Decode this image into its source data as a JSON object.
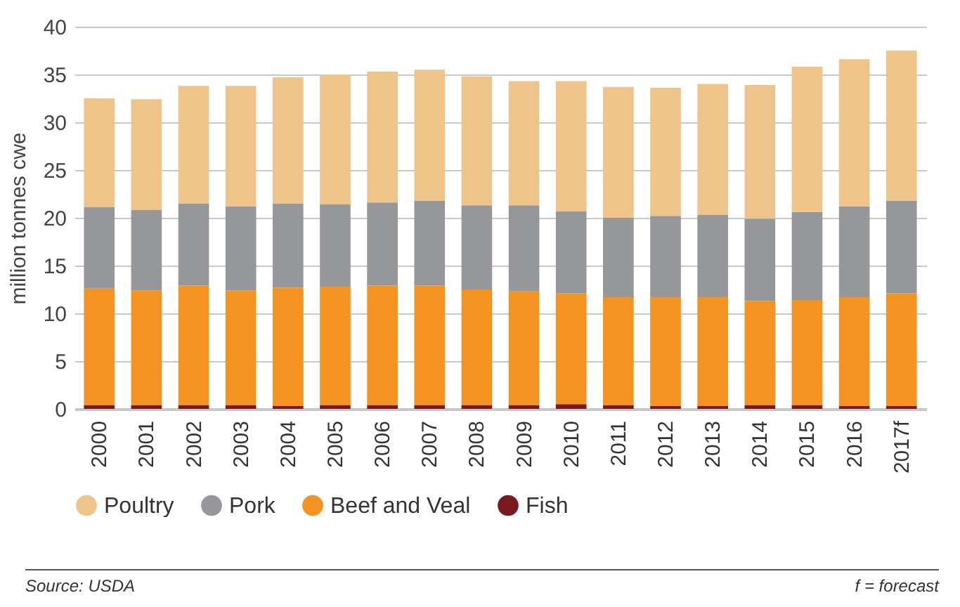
{
  "chart_data": {
    "type": "bar",
    "stacked": true,
    "ylabel": "million tonnes cwe",
    "categories": [
      "2000",
      "2001",
      "2002",
      "2003",
      "2004",
      "2005",
      "2006",
      "2007",
      "2008",
      "2009",
      "2010",
      "2011",
      "2012",
      "2013",
      "2014",
      "2015",
      "2016",
      "2017f"
    ],
    "series": [
      {
        "name": "Fish",
        "color": "#7a1a1f",
        "values": [
          0.4,
          0.4,
          0.4,
          0.4,
          0.3,
          0.4,
          0.4,
          0.4,
          0.4,
          0.4,
          0.5,
          0.4,
          0.3,
          0.3,
          0.4,
          0.4,
          0.3,
          0.3
        ]
      },
      {
        "name": "Beef and Veal",
        "color": "#f39322",
        "values": [
          12.2,
          12.0,
          12.5,
          12.0,
          12.4,
          12.4,
          12.5,
          12.5,
          12.1,
          11.9,
          11.6,
          11.3,
          11.4,
          11.4,
          10.9,
          11.0,
          11.4,
          11.8
        ]
      },
      {
        "name": "Pork",
        "color": "#96979b",
        "values": [
          8.5,
          8.4,
          8.6,
          8.8,
          8.8,
          8.6,
          8.7,
          8.9,
          8.8,
          9.0,
          8.6,
          8.3,
          8.5,
          8.6,
          8.6,
          9.2,
          9.5,
          9.7
        ]
      },
      {
        "name": "Poultry",
        "color": "#eec48b",
        "values": [
          11.4,
          11.6,
          12.3,
          12.6,
          13.2,
          13.6,
          13.7,
          13.7,
          13.5,
          13.0,
          13.6,
          13.7,
          13.4,
          13.7,
          14.0,
          15.2,
          15.4,
          15.7
        ]
      }
    ],
    "ylim": [
      0,
      40
    ],
    "yticks": [
      0,
      5,
      10,
      15,
      20,
      25,
      30,
      35,
      40
    ],
    "grid": "y",
    "legend": "bottom",
    "annotations": [
      "Source: USDA",
      "f = forecast"
    ]
  }
}
